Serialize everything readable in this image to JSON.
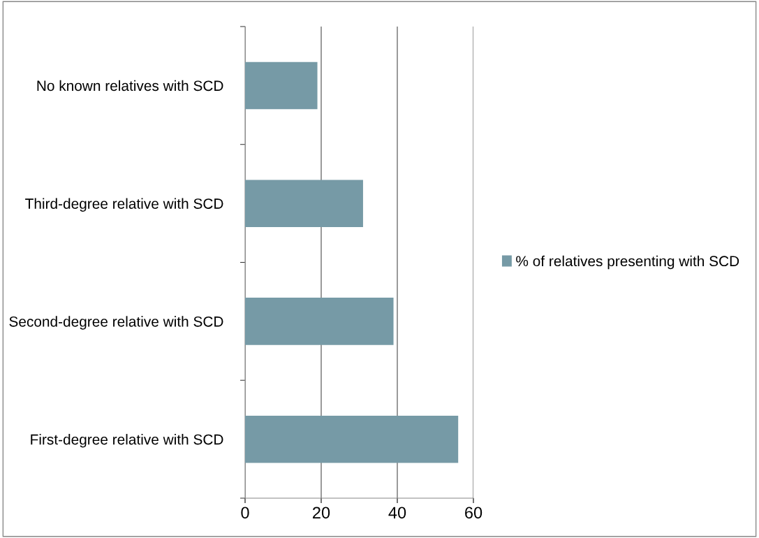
{
  "chart_data": {
    "type": "bar",
    "orientation": "horizontal",
    "categories": [
      "No known relatives with SCD",
      "Third-degree relative with SCD",
      "Second-degree relative with SCD",
      "First-degree relative with SCD"
    ],
    "series": [
      {
        "name": "% of relatives presenting with SCD",
        "color": "#769aa6",
        "values": [
          19,
          31,
          39,
          56
        ]
      }
    ],
    "xlim": [
      0,
      60
    ],
    "xticks": [
      0,
      20,
      40,
      60
    ],
    "grid": "x",
    "legend": "right"
  }
}
